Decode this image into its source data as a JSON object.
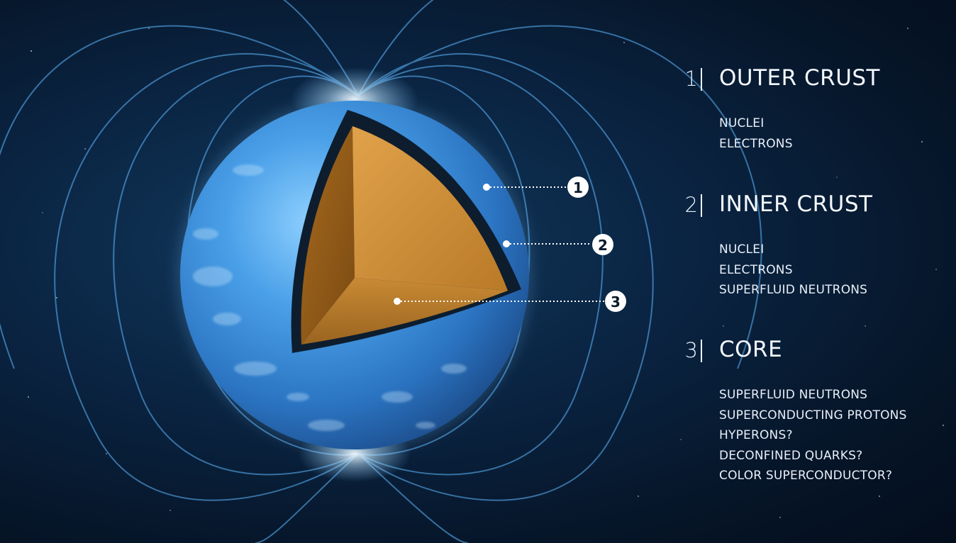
{
  "callouts": [
    "1",
    "2",
    "3"
  ],
  "layers": [
    {
      "number": "1",
      "title": "OUTER CRUST",
      "items": [
        "NUCLEI",
        "ELECTRONS"
      ]
    },
    {
      "number": "2",
      "title": "INNER CRUST",
      "items": [
        "NUCLEI",
        "ELECTRONS",
        "SUPERFLUID NEUTRONS"
      ]
    },
    {
      "number": "3",
      "title": "CORE",
      "items": [
        "SUPERFLUID NEUTRONS",
        "SUPERCONDUCTING PROTONS",
        "HYPERONS?",
        "DECONFINED QUARKS?",
        "COLOR SUPERCONDUCTOR?"
      ]
    }
  ],
  "colors": {
    "background": "#061528",
    "star_surface": "#3e8fd8",
    "field_lines": "#5fb8ff",
    "core": "#c9862a",
    "crust_shell": "#0d1d2e",
    "text": "#eef4fb"
  }
}
